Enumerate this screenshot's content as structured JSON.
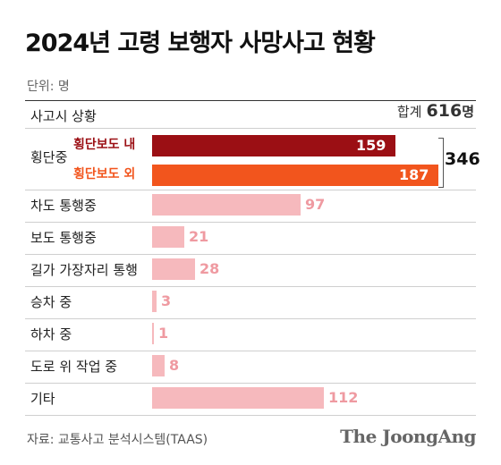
{
  "title": "2024년 고령 보행자 사망사고 현황",
  "unit": "단위: 명",
  "header": {
    "category_label": "사고시 상황",
    "total_label": "합계",
    "total_value": "616",
    "total_suffix": "명"
  },
  "crossing_group": {
    "label": "횡단중",
    "sum": "346"
  },
  "chart_data": {
    "type": "bar",
    "orientation": "horizontal",
    "categories": [
      "횡단보도 내",
      "횡단보도 외",
      "차도 통행중",
      "보도 통행중",
      "길가 가장자리 통행",
      "승차 중",
      "하차 중",
      "도로 위 작업 중",
      "기타"
    ],
    "values": [
      159,
      187,
      97,
      21,
      28,
      3,
      1,
      8,
      112
    ],
    "group": {
      "name": "횡단중",
      "members": [
        "횡단보도 내",
        "횡단보도 외"
      ],
      "total": 346
    },
    "total": 616,
    "colors": {
      "횡단보도 내": "#9b0f14",
      "횡단보도 외": "#f2551d",
      "other": "#f6b9bd"
    }
  },
  "colors": {
    "label_inside_text": "#ffffff",
    "label_outside_text": "#ef9aa1",
    "sub_label_1": "#9b0f14",
    "sub_label_2": "#f2551d"
  },
  "source": "자료: 교통사고 분석시스템(TAAS)",
  "logo": "The JoongAng"
}
